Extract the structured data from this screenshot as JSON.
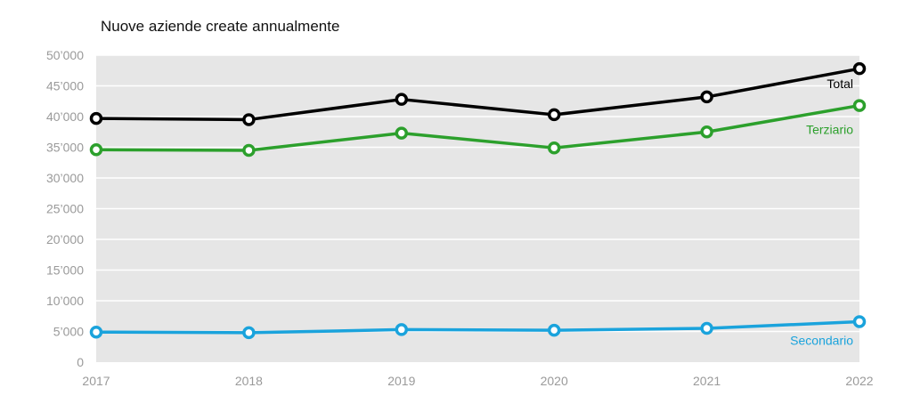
{
  "chart_data": {
    "type": "line",
    "title": "Nuove aziende create annualmente",
    "xlabel": "",
    "ylabel": "",
    "x": [
      "2017",
      "2018",
      "2019",
      "2020",
      "2021",
      "2022"
    ],
    "ylim": [
      0,
      50000
    ],
    "yticks": [
      0,
      5000,
      10000,
      15000,
      20000,
      25000,
      30000,
      35000,
      40000,
      45000,
      50000
    ],
    "ytick_labels": [
      "0",
      "5’000",
      "10’000",
      "15’000",
      "20’000",
      "25’000",
      "30’000",
      "35’000",
      "40’000",
      "45’000",
      "50’000"
    ],
    "grid": true,
    "legend": "inline labels at right end of each series",
    "series": [
      {
        "name": "Total",
        "color": "#000000",
        "label_color": "#000000",
        "values": [
          39700,
          39500,
          42800,
          40300,
          43200,
          47800
        ]
      },
      {
        "name": "Terziario",
        "color": "#2ca02c",
        "label_color": "#2ca02c",
        "values": [
          34600,
          34500,
          37300,
          34900,
          37500,
          41800
        ]
      },
      {
        "name": "Secondario",
        "color": "#1aa3dc",
        "label_color": "#1aa3dc",
        "values": [
          4900,
          4800,
          5300,
          5200,
          5500,
          6600
        ]
      }
    ]
  }
}
